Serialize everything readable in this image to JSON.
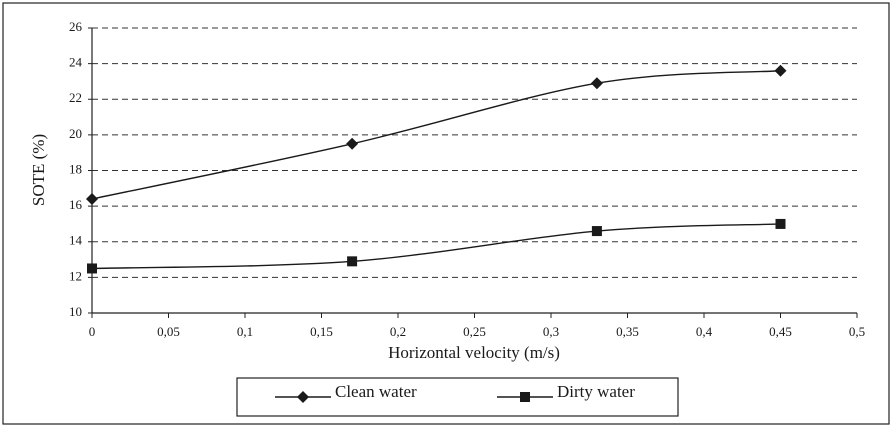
{
  "chart_data": {
    "type": "line",
    "xlabel": "Horizontal velocity (m/s)",
    "ylabel": "SOTE (%)",
    "x": [
      0,
      0.17,
      0.33,
      0.45
    ],
    "series": [
      {
        "name": "Clean water",
        "color": "#1a1a1a",
        "marker": "diamond",
        "values": [
          16.4,
          19.5,
          22.9,
          23.6
        ]
      },
      {
        "name": "Dirty water",
        "color": "#1a1a1a",
        "marker": "square",
        "values": [
          12.5,
          12.9,
          14.6,
          15.0
        ]
      }
    ],
    "xlim": [
      0,
      0.5
    ],
    "xticks": [
      0,
      {
        "value": 0.05,
        "label": "0,05"
      },
      {
        "value": 0.1,
        "label": "0,1"
      },
      {
        "value": 0.15,
        "label": "0,15"
      },
      {
        "value": 0.2,
        "label": "0,2"
      },
      {
        "value": 0.25,
        "label": "0,25"
      },
      {
        "value": 0.3,
        "label": "0,3"
      },
      {
        "value": 0.35,
        "label": "0,35"
      },
      {
        "value": 0.4,
        "label": "0,4"
      },
      {
        "value": 0.45,
        "label": "0,45"
      },
      {
        "value": 0.5,
        "label": "0,5"
      }
    ],
    "ylim": [
      10,
      26
    ],
    "yticks": [
      10,
      12,
      14,
      16,
      18,
      20,
      22,
      24,
      26
    ],
    "grid": true,
    "legend": "bottom"
  }
}
